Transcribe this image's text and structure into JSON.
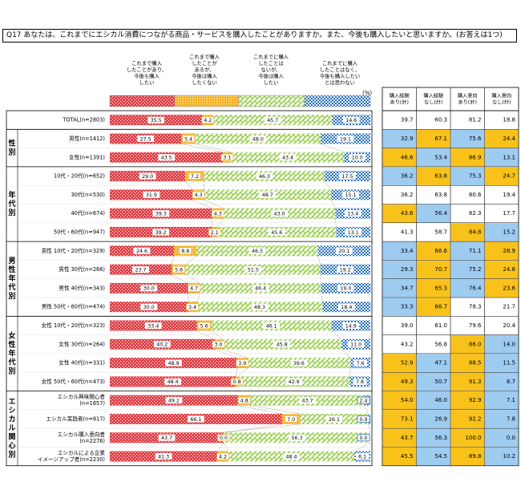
{
  "question": "Q17  あなたは、これまでにエシカル消費につながる商品・サービスを購入したことがありますか。また、今後も購入したいと思いますか。(お答えは1つ)",
  "legend": [
    {
      "label": "これまで購入\nしたことがあり、\n今後も購入\nしたい",
      "color": "#e2454c"
    },
    {
      "label": "これまで購入\nしたことが\nあるが、\n今後は購入\nしたくない",
      "color": "#f2b431"
    },
    {
      "label": "これまでに購入\nしたことは\nないが、\n今後は購入\nしたい",
      "color": "#8ec73f"
    },
    {
      "label": "これまでに購入\nしたことはなく、\n今後も購入したい\nとは思わない",
      "color": "#1f6bc0"
    }
  ],
  "unit": "(%)",
  "summary_headers": [
    "購入経験\nあり(計)",
    "購入経験\nなし(計)",
    "購入意向\nあり(計)",
    "購入意向\nなし(計)"
  ],
  "colors": {
    "highlight_high": "#f9c21b",
    "highlight_low": "#9ecbf0",
    "red": "#e2454c",
    "orange": "#f2b431",
    "green": "#8ec73f",
    "blue": "#1f6bc0"
  },
  "chart_data": {
    "type": "bar",
    "stacked": true,
    "orientation": "horizontal",
    "xlim": [
      0,
      100
    ],
    "groups": [
      {
        "label": "",
        "rows": [
          0
        ]
      },
      {
        "label": "性別",
        "rows": [
          1,
          2
        ]
      },
      {
        "label": "年代別",
        "rows": [
          3,
          4,
          5,
          6
        ]
      },
      {
        "label": "男性年代別",
        "rows": [
          7,
          8,
          9,
          10
        ]
      },
      {
        "label": "女性年代別",
        "rows": [
          11,
          12,
          13,
          14
        ]
      },
      {
        "label": "エシカル関心別",
        "rows": [
          15,
          16,
          17,
          18
        ]
      }
    ],
    "categories": [
      "TOTAL(n=2803)",
      "男性(n=1412)",
      "女性(n=1391)",
      "10代・20代(n=652)",
      "30代(n=530)",
      "40代(n=674)",
      "50代・60代(n=947)",
      "男性 10代・20代(n=329)",
      "男性 30代(n=266)",
      "男性 40代(n=343)",
      "男性 50代・60代(n=474)",
      "女性 10代・20代(n=323)",
      "女性 30代(n=264)",
      "女性 40代(n=331)",
      "女性 50代・60代(n=473)",
      "エシカル興味関心者\n(n=1657)",
      "エシカル実践者(n=817)",
      "エシカル購入意向者\n(n=2276)",
      "エシカルによる企業\nイメージアップ者(n=2230)"
    ],
    "series": [
      {
        "name": "これまで購入したことがあり、今後も購入したい",
        "values": [
          35.5,
          27.5,
          43.5,
          29.0,
          31.9,
          39.3,
          39.2,
          24.6,
          23.7,
          30.0,
          30.0,
          33.4,
          40.2,
          48.9,
          48.4,
          49.2,
          66.1,
          43.7,
          41.3
        ]
      },
      {
        "name": "これまで購入したことがあるが、今後は購入したくない",
        "values": [
          4.2,
          5.4,
          3.1,
          7.2,
          4.3,
          4.3,
          2.1,
          8.8,
          5.6,
          4.7,
          3.4,
          5.6,
          3.0,
          3.9,
          0.8,
          4.8,
          7.0,
          0.0,
          4.2
        ]
      },
      {
        "name": "これまでに購入したことはないが、今後は購入したい",
        "values": [
          45.7,
          48.0,
          43.4,
          46.3,
          48.7,
          43.0,
          45.6,
          46.5,
          51.5,
          46.4,
          48.3,
          46.1,
          45.8,
          39.6,
          42.9,
          43.7,
          26.1,
          56.3,
          48.4
        ]
      },
      {
        "name": "これまでに購入したことはなく、今後も購入したいとは思わない",
        "values": [
          14.6,
          19.1,
          10.0,
          17.5,
          15.1,
          13.4,
          13.1,
          20.1,
          19.2,
          19.0,
          18.4,
          14.9,
          11.0,
          7.6,
          7.8,
          2.4,
          0.9,
          0.0,
          6.1
        ]
      }
    ],
    "summary_table": {
      "columns": [
        "購入経験あり(計)",
        "購入経験なし(計)",
        "購入意向あり(計)",
        "購入意向なし(計)"
      ],
      "rows": [
        [
          39.7,
          60.3,
          81.2,
          18.8
        ],
        [
          32.9,
          67.1,
          75.6,
          24.4
        ],
        [
          46.6,
          53.4,
          86.9,
          13.1
        ],
        [
          36.2,
          63.8,
          75.3,
          24.7
        ],
        [
          36.2,
          63.8,
          80.6,
          19.4
        ],
        [
          43.6,
          56.4,
          82.3,
          17.7
        ],
        [
          41.3,
          58.7,
          84.8,
          15.2
        ],
        [
          33.4,
          66.6,
          71.1,
          28.9
        ],
        [
          29.3,
          70.7,
          75.2,
          24.8
        ],
        [
          34.7,
          65.3,
          76.4,
          23.6
        ],
        [
          33.3,
          66.7,
          78.3,
          21.7
        ],
        [
          39.0,
          61.0,
          79.6,
          20.4
        ],
        [
          43.2,
          56.8,
          86.0,
          14.0
        ],
        [
          52.9,
          47.1,
          88.5,
          11.5
        ],
        [
          49.3,
          50.7,
          91.3,
          8.7
        ],
        [
          54.0,
          46.0,
          92.9,
          7.1
        ],
        [
          73.1,
          26.9,
          92.2,
          7.8
        ],
        [
          43.7,
          56.3,
          100.0,
          0.0
        ],
        [
          45.5,
          54.5,
          89.8,
          10.2
        ]
      ],
      "highlights": [
        [
          "",
          "",
          "",
          ""
        ],
        [
          "low",
          "high",
          "low",
          "high"
        ],
        [
          "high",
          "low",
          "high",
          "low"
        ],
        [
          "low",
          "high",
          "low",
          "high"
        ],
        [
          "",
          "",
          "",
          ""
        ],
        [
          "high",
          "low",
          "",
          ""
        ],
        [
          "",
          "",
          "high",
          "low"
        ],
        [
          "low",
          "high",
          "low",
          "high"
        ],
        [
          "low",
          "high",
          "low",
          "high"
        ],
        [
          "low",
          "high",
          "low",
          "high"
        ],
        [
          "low",
          "high",
          "",
          ""
        ],
        [
          "",
          "",
          "",
          ""
        ],
        [
          "",
          "",
          "high",
          "low"
        ],
        [
          "high",
          "low",
          "high",
          "low"
        ],
        [
          "high",
          "low",
          "high",
          "low"
        ],
        [
          "high",
          "low",
          "high",
          "low"
        ],
        [
          "high",
          "low",
          "high",
          "low"
        ],
        [
          "high",
          "low",
          "high",
          "low"
        ],
        [
          "high",
          "low",
          "high",
          "low"
        ]
      ]
    }
  }
}
